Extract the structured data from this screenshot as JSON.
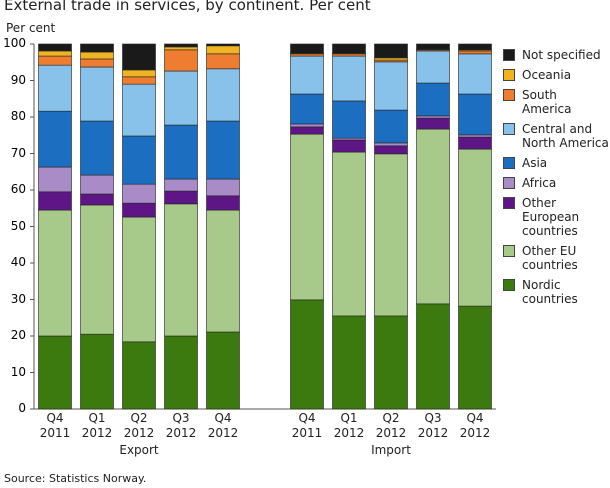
{
  "chart_data": {
    "type": "stacked_bar",
    "title": "External trade in services, by continent. Per cent",
    "y_label": "Per cent",
    "source": "Source: Statistics Norway.",
    "categories": [
      "Q4\n2011",
      "Q1\n2012",
      "Q2\n2012",
      "Q3\n2012",
      "Q4\n2012",
      null,
      "Q4\n2011",
      "Q1\n2012",
      "Q2\n2012",
      "Q3\n2012",
      "Q4\n2012"
    ],
    "group_labels": [
      "Export",
      "Import"
    ],
    "ylim": [
      0,
      100
    ],
    "yticks": [
      0,
      10,
      20,
      30,
      40,
      50,
      60,
      70,
      80,
      90,
      100
    ],
    "series": [
      {
        "name": "Nordic\ncountries",
        "color": "#3c7a0f",
        "values": [
          20.0,
          20.5,
          18.4,
          20.0,
          21.1,
          null,
          29.9,
          25.5,
          25.5,
          28.8,
          28.2
        ]
      },
      {
        "name": "Other EU\ncountries",
        "color": "#a7c98a",
        "values": [
          34.5,
          35.4,
          34.2,
          36.2,
          33.4,
          null,
          45.4,
          44.9,
          44.4,
          47.9,
          43.0
        ]
      },
      {
        "name": "Other\nEuropean\ncountries",
        "color": "#5e1686",
        "values": [
          5.0,
          3.0,
          3.8,
          3.5,
          3.9,
          null,
          2.0,
          3.3,
          2.2,
          3.0,
          3.3
        ]
      },
      {
        "name": "Africa",
        "color": "#a98bc8",
        "values": [
          6.8,
          5.2,
          5.2,
          3.3,
          4.6,
          null,
          0.8,
          0.5,
          0.8,
          0.6,
          0.6
        ]
      },
      {
        "name": "Asia",
        "color": "#1c6fc0",
        "values": [
          15.3,
          14.8,
          13.2,
          14.8,
          15.9,
          null,
          8.2,
          10.2,
          9.0,
          9.0,
          11.2
        ]
      },
      {
        "name": "Central and\nNorth America",
        "color": "#88c1ea",
        "values": [
          12.6,
          14.8,
          14.2,
          14.8,
          14.3,
          null,
          10.4,
          12.3,
          13.2,
          8.8,
          11.0
        ]
      },
      {
        "name": "South America",
        "color": "#ee7d31",
        "values": [
          2.5,
          2.2,
          2.0,
          5.8,
          4.1,
          null,
          0.6,
          0.6,
          0.5,
          0.3,
          0.8
        ]
      },
      {
        "name": "Oceania",
        "color": "#f0b323",
        "values": [
          1.4,
          1.9,
          1.9,
          0.8,
          2.2,
          null,
          0.2,
          0.2,
          0.6,
          0.2,
          0.3
        ]
      },
      {
        "name": "Not specified",
        "color": "#1a1a1a",
        "values": [
          1.9,
          2.2,
          7.1,
          0.8,
          0.5,
          null,
          2.5,
          2.5,
          3.8,
          1.4,
          1.6
        ]
      }
    ]
  }
}
